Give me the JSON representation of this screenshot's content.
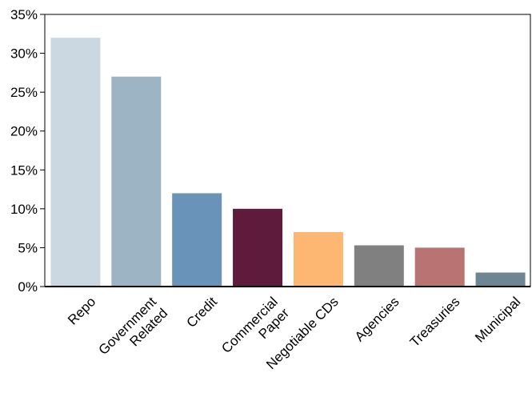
{
  "chart_data": {
    "type": "bar",
    "title": "",
    "xlabel": "",
    "ylabel": "",
    "ylim": [
      0,
      35
    ],
    "yticks": [
      "0%",
      "5%",
      "10%",
      "15%",
      "20%",
      "25%",
      "30%",
      "35%"
    ],
    "grid": false,
    "legend": "none",
    "categories": [
      {
        "lines": [
          "Repo"
        ]
      },
      {
        "lines": [
          "Government",
          "Related"
        ]
      },
      {
        "lines": [
          "Credit"
        ]
      },
      {
        "lines": [
          "Commercial",
          "Paper"
        ]
      },
      {
        "lines": [
          "Negotiable CDs"
        ]
      },
      {
        "lines": [
          "Agencies"
        ]
      },
      {
        "lines": [
          "Treasuries"
        ]
      },
      {
        "lines": [
          "Municipal"
        ]
      }
    ],
    "values": [
      32,
      27,
      12,
      10,
      7,
      5.3,
      5,
      1.8
    ],
    "colors": [
      "#ccd8e1",
      "#9db4c4",
      "#6a93ba",
      "#5e1b3c",
      "#fdb772",
      "#808080",
      "#b97372",
      "#6e8694"
    ]
  }
}
